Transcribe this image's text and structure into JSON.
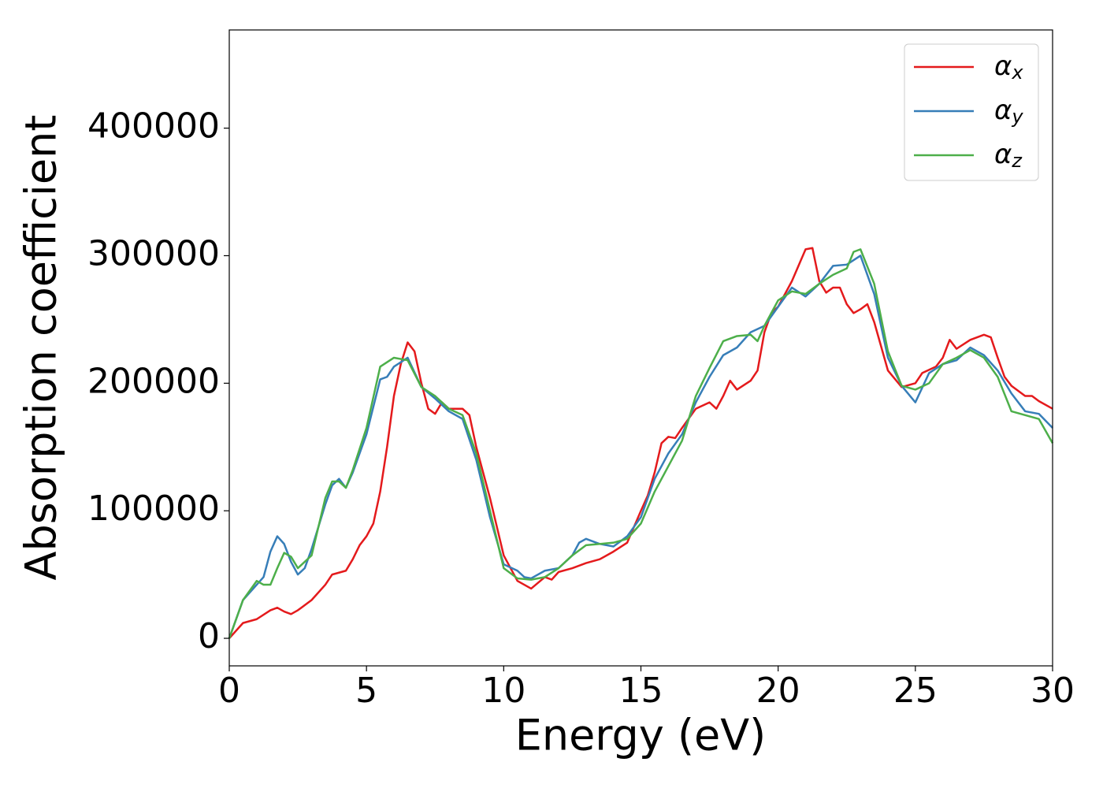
{
  "chart_data": {
    "type": "line",
    "xlabel": "Energy (eV)",
    "ylabel": "Absorption coefficient",
    "xlim": [
      0,
      30
    ],
    "ylim": [
      -21600,
      477000
    ],
    "xticks": [
      0,
      5,
      10,
      15,
      20,
      25,
      30
    ],
    "yticks": [
      0,
      100000,
      200000,
      300000,
      400000
    ],
    "grid": false,
    "legend": "upper right",
    "series": [
      {
        "name": "αx",
        "color": "#e41a1c",
        "x": [
          0,
          0.5,
          1,
          1.5,
          1.75,
          2,
          2.25,
          2.5,
          3,
          3.5,
          3.75,
          4.25,
          4.5,
          4.75,
          5,
          5.25,
          5.5,
          5.75,
          6,
          6.25,
          6.5,
          6.75,
          7,
          7.25,
          7.5,
          7.75,
          8,
          8.5,
          8.75,
          9,
          9.5,
          10,
          10.5,
          11,
          11.5,
          11.75,
          12,
          12.5,
          13,
          13.5,
          14,
          14.5,
          15,
          15.25,
          15.5,
          15.75,
          16,
          16.25,
          16.5,
          17,
          17.5,
          17.75,
          18,
          18.25,
          18.5,
          19,
          19.25,
          19.5,
          19.75,
          20,
          20.5,
          21,
          21.25,
          21.5,
          21.75,
          22,
          22.25,
          22.5,
          22.75,
          23,
          23.25,
          23.5,
          24,
          24.5,
          25,
          25.25,
          25.75,
          26,
          26.25,
          26.5,
          27,
          27.5,
          27.75,
          28,
          28.25,
          28.5,
          29,
          29.25,
          29.5,
          30
        ],
        "values": [
          0,
          12000,
          15000,
          22000,
          24000,
          21000,
          19000,
          22000,
          30000,
          42000,
          50000,
          53000,
          62000,
          73000,
          80000,
          90000,
          115000,
          150000,
          190000,
          215000,
          232000,
          225000,
          200000,
          180000,
          176000,
          185000,
          180000,
          180000,
          175000,
          150000,
          110000,
          65000,
          45000,
          39000,
          48000,
          46000,
          52000,
          55000,
          59000,
          62000,
          68000,
          75000,
          100000,
          112000,
          130000,
          153000,
          158000,
          157000,
          165000,
          180000,
          185000,
          180000,
          190000,
          202000,
          195000,
          202000,
          210000,
          240000,
          255000,
          260000,
          280000,
          305000,
          306000,
          280000,
          271000,
          275000,
          275000,
          262000,
          255000,
          258000,
          262000,
          248000,
          210000,
          197000,
          200000,
          208000,
          213000,
          220000,
          234000,
          227000,
          234000,
          238000,
          236000,
          220000,
          205000,
          198000,
          190000,
          190000,
          186000,
          180000
        ]
      },
      {
        "name": "αy",
        "color": "#377eb8",
        "x": [
          0,
          0.5,
          1,
          1.25,
          1.5,
          1.75,
          2,
          2.25,
          2.5,
          2.75,
          3,
          3.5,
          3.75,
          4,
          4.25,
          4.5,
          5,
          5.5,
          5.75,
          6,
          6.5,
          7,
          7.5,
          8,
          8.5,
          9,
          9.5,
          10,
          10.5,
          10.75,
          11,
          11.5,
          12,
          12.5,
          12.75,
          13,
          13.5,
          14,
          14.5,
          15,
          15.5,
          16,
          16.5,
          17,
          17.5,
          18,
          18.5,
          19,
          19.5,
          20,
          20.5,
          21,
          21.5,
          22,
          22.5,
          23,
          23.5,
          24,
          24.5,
          25,
          25.5,
          26,
          26.5,
          27,
          27.5,
          28,
          28.5,
          29,
          29.5,
          30
        ],
        "values": [
          0,
          30000,
          42000,
          48000,
          68000,
          80000,
          74000,
          60000,
          50000,
          55000,
          70000,
          105000,
          120000,
          125000,
          118000,
          130000,
          160000,
          203000,
          205000,
          213000,
          220000,
          197000,
          188000,
          178000,
          172000,
          140000,
          95000,
          58000,
          53000,
          48000,
          47000,
          53000,
          55000,
          65000,
          75000,
          78000,
          74000,
          72000,
          80000,
          95000,
          125000,
          145000,
          160000,
          185000,
          205000,
          222000,
          228000,
          240000,
          245000,
          260000,
          275000,
          268000,
          278000,
          292000,
          293000,
          300000,
          270000,
          220000,
          198000,
          185000,
          208000,
          215000,
          218000,
          228000,
          222000,
          210000,
          192000,
          178000,
          176000,
          165000
        ]
      },
      {
        "name": "αz",
        "color": "#4daf4a",
        "x": [
          0,
          0.5,
          1,
          1.25,
          1.5,
          1.75,
          2,
          2.25,
          2.5,
          3,
          3.5,
          3.75,
          4,
          4.25,
          4.5,
          5,
          5.5,
          6,
          6.5,
          7,
          7.5,
          8,
          8.5,
          9,
          9.5,
          10,
          10.5,
          11,
          11.5,
          12,
          12.5,
          13,
          13.5,
          14,
          14.5,
          15,
          15.5,
          16,
          16.5,
          17,
          17.5,
          18,
          18.5,
          19,
          19.25,
          19.5,
          20,
          20.5,
          21,
          21.5,
          22,
          22.5,
          22.75,
          23,
          23.5,
          24,
          24.5,
          25,
          25.5,
          26,
          26.5,
          27,
          27.5,
          28,
          28.5,
          29,
          29.5,
          30
        ],
        "values": [
          0,
          30000,
          45000,
          42000,
          42000,
          55000,
          67000,
          64000,
          55000,
          65000,
          110000,
          123000,
          123000,
          118000,
          132000,
          165000,
          213000,
          220000,
          218000,
          197000,
          190000,
          180000,
          175000,
          145000,
          100000,
          55000,
          47000,
          46000,
          48000,
          55000,
          65000,
          73000,
          74000,
          75000,
          78000,
          90000,
          115000,
          135000,
          155000,
          190000,
          212000,
          233000,
          237000,
          238000,
          233000,
          245000,
          265000,
          272000,
          270000,
          278000,
          285000,
          290000,
          303000,
          305000,
          278000,
          225000,
          198000,
          195000,
          200000,
          215000,
          220000,
          226000,
          220000,
          205000,
          178000,
          175000,
          172000,
          153000
        ]
      }
    ]
  }
}
